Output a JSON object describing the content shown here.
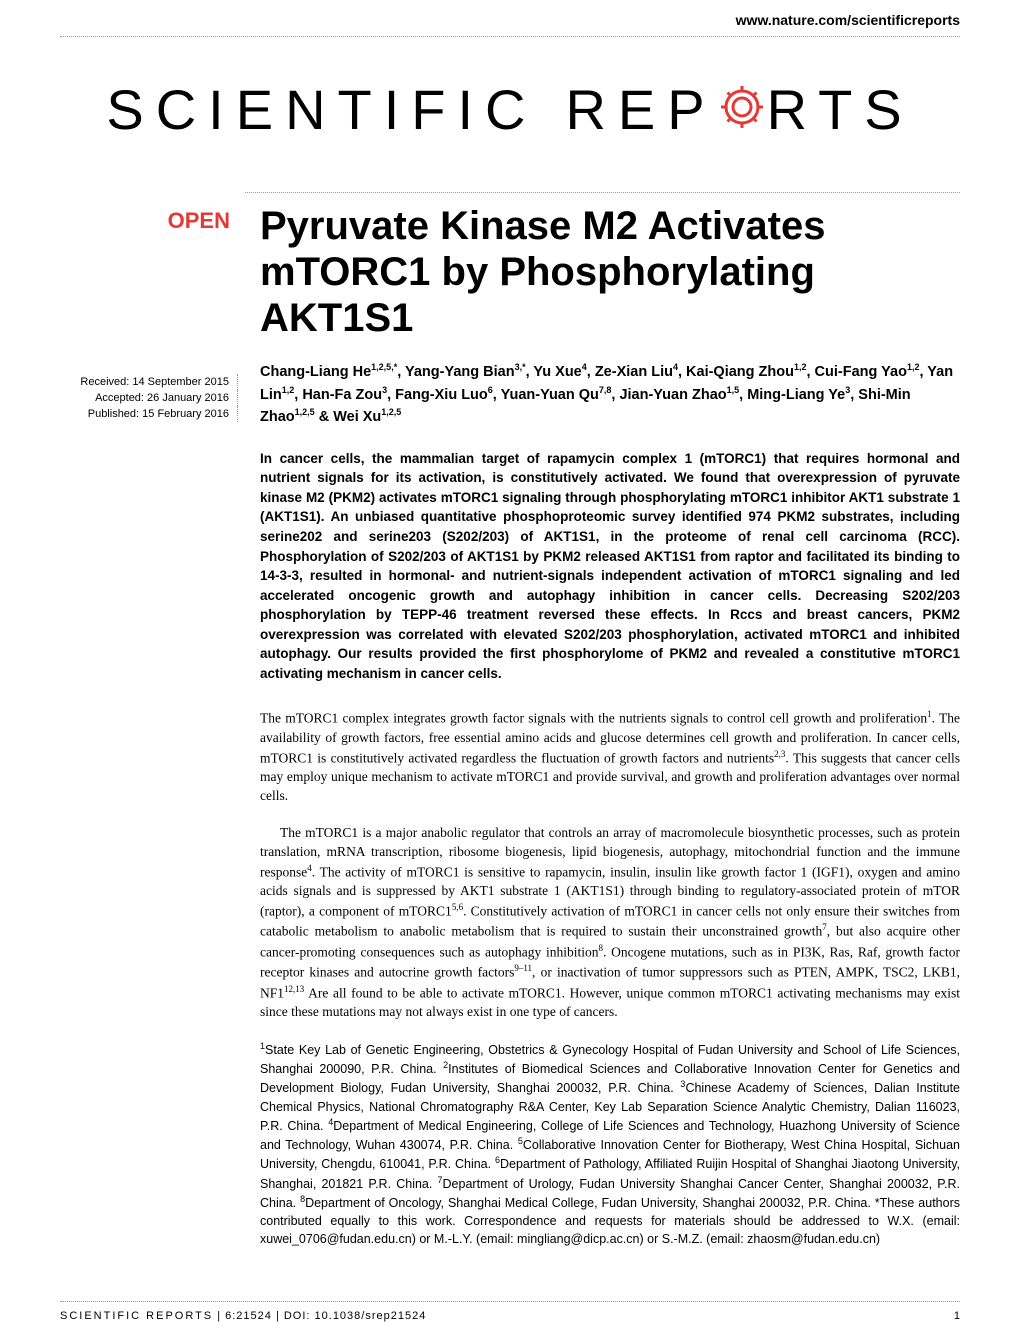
{
  "header": {
    "url": "www.nature.com/scientificreports"
  },
  "logo": {
    "text_left": "SCIENTIFIC",
    "text_right_before": "REP",
    "text_right_after": "RTS",
    "gear_color": "#e53935"
  },
  "badge": {
    "open": "OPEN"
  },
  "dates": {
    "received": "Received: 14 September 2015",
    "accepted": "Accepted: 26 January 2016",
    "published": "Published: 15 February 2016"
  },
  "title": "Pyruvate Kinase M2 Activates mTORC1 by Phosphorylating AKT1S1",
  "authors_html": "Chang-Liang He<sup>1,2,5,*</sup>, Yang-Yang Bian<sup>3,*</sup>, Yu Xue<sup>4</sup>, Ze-Xian Liu<sup>4</sup>, Kai-Qiang Zhou<sup>1,2</sup>, Cui-Fang Yao<sup>1,2</sup>, Yan Lin<sup>1,2</sup>, Han-Fa Zou<sup>3</sup>, Fang-Xiu Luo<sup>6</sup>, Yuan-Yuan Qu<sup>7,8</sup>, Jian-Yuan Zhao<sup>1,5</sup>, Ming-Liang Ye<sup>3</sup>, Shi-Min Zhao<sup>1,2,5</sup> & Wei Xu<sup>1,2,5</sup>",
  "abstract": "In cancer cells, the mammalian target of rapamycin complex 1 (mTORC1) that requires hormonal and nutrient signals for its activation, is constitutively activated. We found that overexpression of pyruvate kinase M2 (PKM2) activates mTORC1 signaling through phosphorylating mTORC1 inhibitor AKT1 substrate 1 (AKT1S1). An unbiased quantitative phosphoproteomic survey identified 974 PKM2 substrates, including serine202 and serine203 (S202/203) of AKT1S1, in the proteome of renal cell carcinoma (RCC). Phosphorylation of S202/203 of AKT1S1 by PKM2 released AKT1S1 from raptor and facilitated its binding to 14-3-3, resulted in hormonal- and nutrient-signals independent activation of mTORC1 signaling and led accelerated oncogenic growth and autophagy inhibition in cancer cells. Decreasing S202/203 phosphorylation by TEPP-46 treatment reversed these effects. In Rccs and breast cancers, PKM2 overexpression was correlated with elevated S202/203 phosphorylation, activated mTORC1 and inhibited autophagy. Our results provided the first phosphorylome of PKM2 and revealed a constitutive mTORC1 activating mechanism in cancer cells.",
  "body": {
    "para1_html": "The mTORC1 complex integrates growth factor signals with the nutrients signals to control cell growth and proliferation<sup>1</sup>. The availability of growth factors, free essential amino acids and glucose determines cell growth and proliferation. In cancer cells, mTORC1 is constitutively activated regardless the fluctuation of growth factors and nutrients<sup>2,3</sup>. This suggests that cancer cells may employ unique mechanism to activate mTORC1 and provide survival, and growth and proliferation advantages over normal cells.",
    "para2_html": "The mTORC1 is a major anabolic regulator that controls an array of macromolecule biosynthetic processes, such as protein translation, mRNA transcription, ribosome biogenesis, lipid biogenesis, autophagy, mitochondrial function and the immune response<sup>4</sup>. The activity of mTORC1 is sensitive to rapamycin, insulin, insulin like growth factor 1 (IGF1), oxygen and amino acids signals and is suppressed by AKT1 substrate 1 (AKT1S1) through binding to regulatory-associated protein of mTOR (raptor), a component of mTORC1<sup>5,6</sup>. Constitutively activation of mTORC1 in cancer cells not only ensure their switches from catabolic metabolism to anabolic metabolism that is required to sustain their unconstrained growth<sup>7</sup>, but also acquire other cancer-promoting consequences such as autophagy inhibition<sup>8</sup>. Oncogene mutations, such as in PI3K, Ras, Raf, growth factor receptor kinases and autocrine growth factors<sup>9–11</sup>, or inactivation of tumor suppressors such as PTEN, AMPK, TSC2, LKB1, NF1<sup>12,13</sup> Are all found to be able to activate mTORC1. However, unique common mTORC1 activating mechanisms may exist since these mutations may not always exist in one type of cancers."
  },
  "affiliations_html": "<sup>1</sup>State Key Lab of Genetic Engineering, Obstetrics & Gynecology Hospital of Fudan University and School of Life Sciences, Shanghai 200090, P.R. China. <sup>2</sup>Institutes of Biomedical Sciences and Collaborative Innovation Center for Genetics and Development Biology, Fudan University, Shanghai 200032, P.R. China. <sup>3</sup>Chinese Academy of Sciences, Dalian Institute Chemical Physics, National Chromatography R&A Center, Key Lab Separation Science Analytic Chemistry, Dalian 116023, P.R. China. <sup>4</sup>Department of Medical Engineering, College of Life Sciences and Technology, Huazhong University of Science and Technology, Wuhan 430074, P.R. China. <sup>5</sup>Collaborative Innovation Center for Biotherapy, West China Hospital, Sichuan University, Chengdu, 610041, P.R. China. <sup>6</sup>Department of Pathology, Affiliated Ruijin Hospital of Shanghai Jiaotong University, Shanghai, 201821 P.R. China. <sup>7</sup>Department of Urology, Fudan University Shanghai Cancer Center, Shanghai 200032, P.R. China. <sup>8</sup>Department of Oncology, Shanghai Medical College, Fudan University, Shanghai 200032, P.R. China. *These authors contributed equally to this work. Correspondence and requests for materials should be addressed to W.X. (email: xuwei_0706@fudan.edu.cn) or M.-L.Y. (email: mingliang@dicp.ac.cn) or S.-M.Z. (email: zhaosm@fudan.edu.cn)",
  "footer": {
    "citation_brand": "SCIENTIFIC REPORTS",
    "citation_rest": " | 6:21524 | DOI: 10.1038/srep21524",
    "page_num": "1"
  }
}
